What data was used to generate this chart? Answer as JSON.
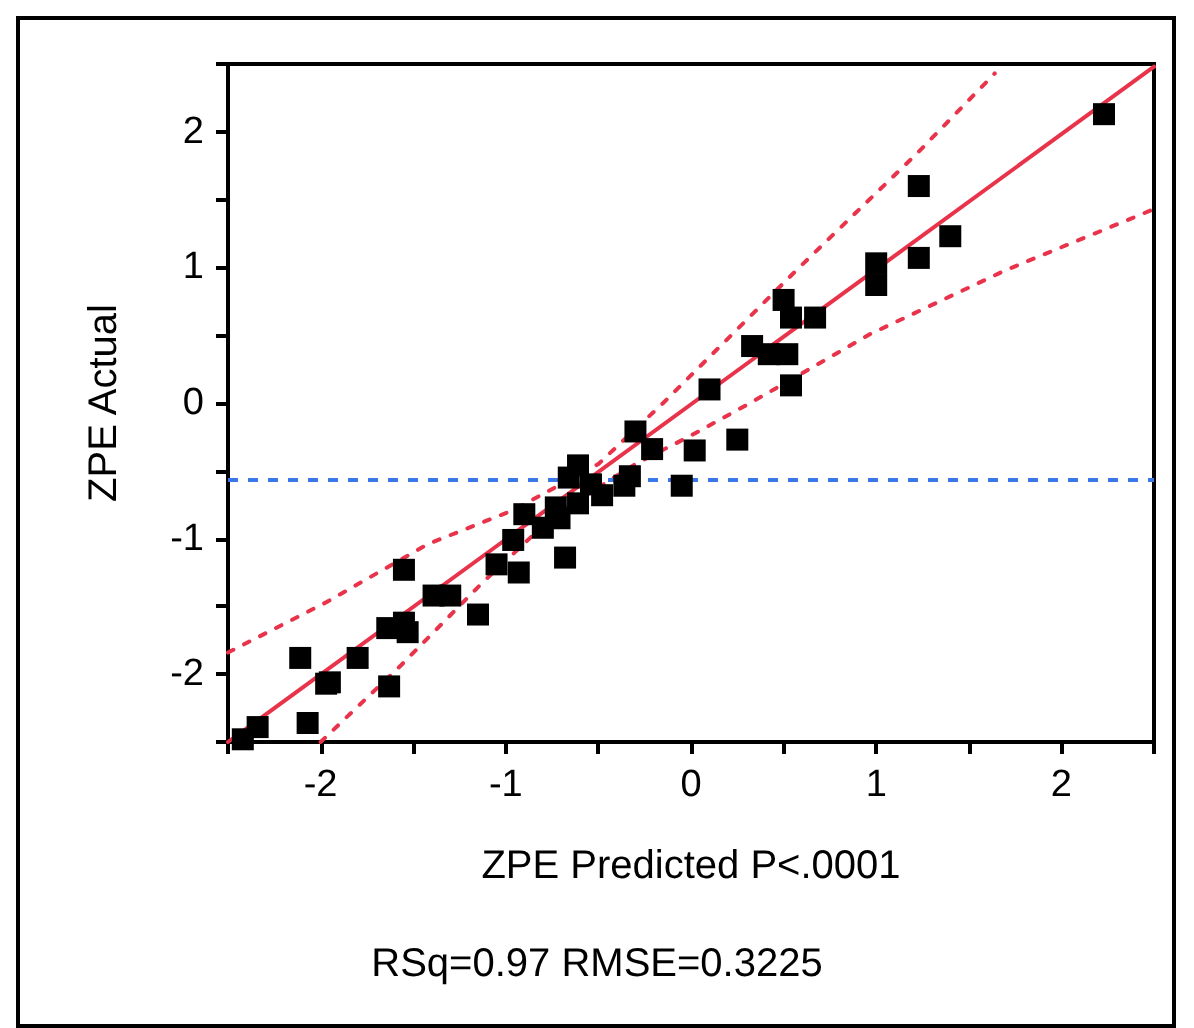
{
  "chart_data": {
    "type": "scatter",
    "xlabel": "ZPE Predicted P<.0001",
    "ylabel": "ZPE Actual",
    "annotations": [
      "RSq=0.97 RMSE=0.3225"
    ],
    "xlim": [
      -2.5,
      2.5
    ],
    "ylim": [
      -2.5,
      2.5
    ],
    "xticks": [
      {
        "value": -2.5,
        "label": null
      },
      -2,
      {
        "value": -1.5,
        "label": null
      },
      -1,
      {
        "value": -0.5,
        "label": null
      },
      0,
      {
        "value": 0.5,
        "label": null
      },
      1,
      {
        "value": 1.5,
        "label": null
      },
      2,
      {
        "value": 2.5,
        "label": null
      }
    ],
    "yticks": [
      {
        "value": -2.5,
        "label": null
      },
      -2,
      {
        "value": -1.5,
        "label": null
      },
      -1,
      {
        "value": -0.5,
        "label": null
      },
      0,
      {
        "value": 0.5,
        "label": null
      },
      1,
      {
        "value": 1.5,
        "label": null
      },
      2,
      {
        "value": 2.5,
        "label": null
      }
    ],
    "grid": false,
    "ref_lines": [
      {
        "axis": "y",
        "value": -0.57,
        "color": "#3b78e7",
        "line_style": "dashed"
      }
    ],
    "series": [
      {
        "color": "#000000",
        "marker": "square",
        "x": [
          -2.34,
          -2.42,
          -2.07,
          -2.11,
          -1.97,
          -1.95,
          -1.8,
          -1.63,
          -1.55,
          -1.64,
          -1.55,
          -1.53,
          -1.39,
          -1.3,
          -1.15,
          -1.05,
          -0.93,
          -0.96,
          -0.9,
          -0.8,
          -0.73,
          -0.71,
          -0.68,
          -0.66,
          -0.61,
          -0.61,
          -0.54,
          -0.48,
          -0.36,
          -0.33,
          -0.3,
          -0.21,
          -0.05,
          0.02,
          0.25,
          0.1,
          0.54,
          0.33,
          0.42,
          0.52,
          0.5,
          0.54,
          0.67,
          1.0,
          1.0,
          1.23,
          1.23,
          1.4,
          2.23
        ],
        "values": [
          -2.39,
          -2.48,
          -2.36,
          -1.88,
          -2.07,
          -2.06,
          -1.88,
          -2.09,
          -1.23,
          -1.66,
          -1.62,
          -1.69,
          -1.42,
          -1.42,
          -1.56,
          -1.19,
          -1.25,
          -1.01,
          -0.82,
          -0.92,
          -0.77,
          -0.85,
          -1.14,
          -0.55,
          -0.46,
          -0.74,
          -0.6,
          -0.68,
          -0.61,
          -0.54,
          -0.21,
          -0.34,
          -0.61,
          -0.35,
          -0.27,
          0.1,
          0.13,
          0.42,
          0.36,
          0.36,
          0.76,
          0.63,
          0.63,
          1.03,
          0.87,
          1.6,
          1.07,
          1.23,
          2.13
        ]
      },
      {
        "type": "line",
        "color": "#e8334a",
        "marker": "none",
        "line_style": "solid",
        "x": [
          -2.5,
          2.5
        ],
        "values": [
          -2.5,
          2.48
        ]
      },
      {
        "type": "line",
        "color": "#e8334a",
        "marker": "none",
        "line_style": "dotted",
        "x": [
          -2.5,
          -1.97,
          -1.42,
          -0.96,
          -0.5,
          -0.15,
          0.57,
          1.22,
          1.64
        ],
        "values": [
          -1.84,
          -1.47,
          -1.04,
          -0.79,
          -0.45,
          0.0,
          0.98,
          1.84,
          2.43
        ]
      },
      {
        "type": "line",
        "color": "#e8334a",
        "marker": "none",
        "line_style": "dotted",
        "x": [
          -2.0,
          -1.57,
          -1.13,
          -0.74,
          -0.3,
          0.0,
          0.32,
          0.97,
          1.7,
          2.5
        ],
        "values": [
          -2.5,
          -1.94,
          -1.33,
          -0.83,
          -0.45,
          -0.24,
          0.0,
          0.51,
          0.98,
          1.43
        ]
      }
    ]
  }
}
